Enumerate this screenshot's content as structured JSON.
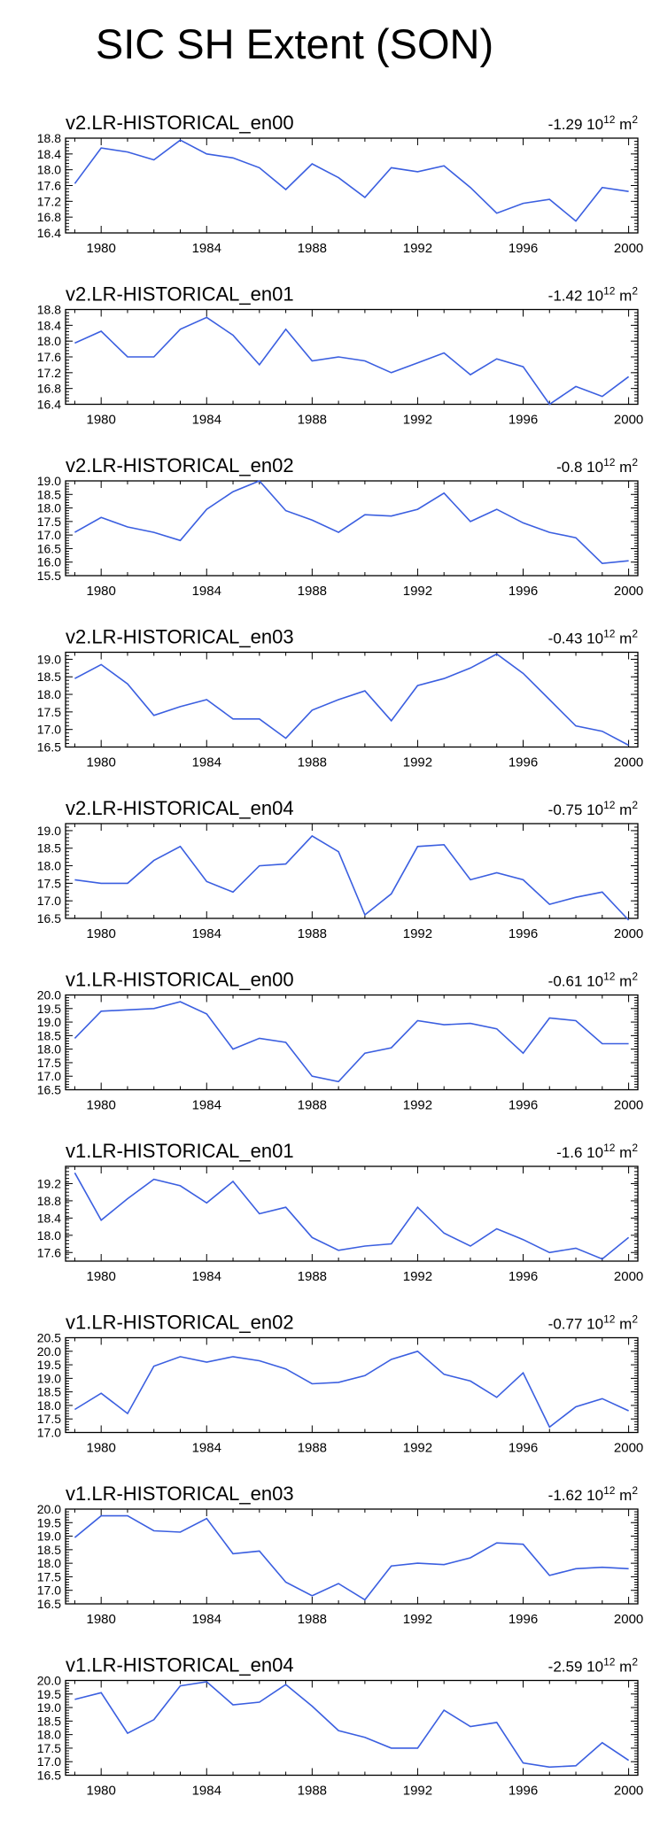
{
  "title": "SIC SH Extent (SON)",
  "chart_data": [
    {
      "type": "line",
      "title": "v2.LR-HISTORICAL_en00",
      "trend": "-1.29",
      "unit_base": "10",
      "unit_exp": "12",
      "unit_suffix": "m",
      "unit_suffix_exp": "2",
      "x": [
        1979,
        1980,
        1981,
        1982,
        1983,
        1984,
        1985,
        1986,
        1987,
        1988,
        1989,
        1990,
        1991,
        1992,
        1993,
        1994,
        1995,
        1996,
        1997,
        1998,
        1999,
        2000
      ],
      "y": [
        17.65,
        18.55,
        18.45,
        18.25,
        18.75,
        18.4,
        18.3,
        18.05,
        17.5,
        18.15,
        17.8,
        17.3,
        18.05,
        17.95,
        18.1,
        17.55,
        16.9,
        17.15,
        17.25,
        16.7,
        17.55,
        17.45
      ],
      "ylim": [
        16.4,
        18.8
      ],
      "yticks": [
        "16.4",
        "16.8",
        "17.2",
        "17.6",
        "18.0",
        "18.4",
        "18.8"
      ],
      "xticks": [
        "1980",
        "1984",
        "1988",
        "1992",
        "1996",
        "2000"
      ]
    },
    {
      "type": "line",
      "title": "v2.LR-HISTORICAL_en01",
      "trend": "-1.42",
      "unit_base": "10",
      "unit_exp": "12",
      "unit_suffix": "m",
      "unit_suffix_exp": "2",
      "x": [
        1979,
        1980,
        1981,
        1982,
        1983,
        1984,
        1985,
        1986,
        1987,
        1988,
        1989,
        1990,
        1991,
        1992,
        1993,
        1994,
        1995,
        1996,
        1997,
        1998,
        1999,
        2000
      ],
      "y": [
        17.95,
        18.25,
        17.6,
        17.6,
        18.3,
        18.6,
        18.15,
        17.4,
        18.3,
        17.5,
        17.6,
        17.5,
        17.2,
        17.45,
        17.7,
        17.15,
        17.55,
        17.35,
        16.4,
        16.85,
        16.6,
        17.1
      ],
      "ylim": [
        16.4,
        18.8
      ],
      "yticks": [
        "16.4",
        "16.8",
        "17.2",
        "17.6",
        "18.0",
        "18.4",
        "18.8"
      ],
      "xticks": [
        "1980",
        "1984",
        "1988",
        "1992",
        "1996",
        "2000"
      ]
    },
    {
      "type": "line",
      "title": "v2.LR-HISTORICAL_en02",
      "trend": "-0.8",
      "unit_base": "10",
      "unit_exp": "12",
      "unit_suffix": "m",
      "unit_suffix_exp": "2",
      "x": [
        1979,
        1980,
        1981,
        1982,
        1983,
        1984,
        1985,
        1986,
        1987,
        1988,
        1989,
        1990,
        1991,
        1992,
        1993,
        1994,
        1995,
        1996,
        1997,
        1998,
        1999,
        2000
      ],
      "y": [
        17.1,
        17.65,
        17.3,
        17.1,
        16.8,
        17.95,
        18.6,
        19.0,
        17.9,
        17.55,
        17.1,
        17.75,
        17.7,
        17.95,
        18.55,
        17.5,
        17.95,
        17.45,
        17.1,
        16.9,
        15.95,
        16.05
      ],
      "ylim": [
        15.5,
        19.0
      ],
      "yticks": [
        "15.5",
        "16.0",
        "16.5",
        "17.0",
        "17.5",
        "18.0",
        "18.5",
        "19.0"
      ],
      "xticks": [
        "1980",
        "1984",
        "1988",
        "1992",
        "1996",
        "2000"
      ]
    },
    {
      "type": "line",
      "title": "v2.LR-HISTORICAL_en03",
      "trend": "-0.43",
      "unit_base": "10",
      "unit_exp": "12",
      "unit_suffix": "m",
      "unit_suffix_exp": "2",
      "x": [
        1979,
        1980,
        1981,
        1982,
        1983,
        1984,
        1985,
        1986,
        1987,
        1988,
        1989,
        1990,
        1991,
        1992,
        1993,
        1994,
        1995,
        1996,
        1997,
        1998,
        1999,
        2000
      ],
      "y": [
        18.45,
        18.85,
        18.3,
        17.4,
        17.65,
        17.85,
        17.3,
        17.3,
        16.75,
        17.55,
        17.85,
        18.1,
        17.25,
        18.25,
        18.45,
        18.75,
        19.15,
        18.6,
        17.85,
        17.1,
        16.95,
        16.55
      ],
      "ylim": [
        16.5,
        19.2
      ],
      "yticks": [
        "16.5",
        "17.0",
        "17.5",
        "18.0",
        "18.5",
        "19.0"
      ],
      "xticks": [
        "1980",
        "1984",
        "1988",
        "1992",
        "1996",
        "2000"
      ]
    },
    {
      "type": "line",
      "title": "v2.LR-HISTORICAL_en04",
      "trend": "-0.75",
      "unit_base": "10",
      "unit_exp": "12",
      "unit_suffix": "m",
      "unit_suffix_exp": "2",
      "x": [
        1979,
        1980,
        1981,
        1982,
        1983,
        1984,
        1985,
        1986,
        1987,
        1988,
        1989,
        1990,
        1991,
        1992,
        1993,
        1994,
        1995,
        1996,
        1997,
        1998,
        1999,
        2000
      ],
      "y": [
        17.6,
        17.5,
        17.5,
        18.15,
        18.55,
        17.55,
        17.25,
        18.0,
        18.05,
        18.85,
        18.4,
        16.6,
        17.2,
        18.55,
        18.6,
        17.6,
        17.8,
        17.6,
        16.9,
        17.1,
        17.25,
        16.45
      ],
      "ylim": [
        16.5,
        19.2
      ],
      "yticks": [
        "16.5",
        "17.0",
        "17.5",
        "18.0",
        "18.5",
        "19.0"
      ],
      "xticks": [
        "1980",
        "1984",
        "1988",
        "1992",
        "1996",
        "2000"
      ]
    },
    {
      "type": "line",
      "title": "v1.LR-HISTORICAL_en00",
      "trend": "-0.61",
      "unit_base": "10",
      "unit_exp": "12",
      "unit_suffix": "m",
      "unit_suffix_exp": "2",
      "x": [
        1979,
        1980,
        1981,
        1982,
        1983,
        1984,
        1985,
        1986,
        1987,
        1988,
        1989,
        1990,
        1991,
        1992,
        1993,
        1994,
        1995,
        1996,
        1997,
        1998,
        1999,
        2000
      ],
      "y": [
        18.4,
        19.4,
        19.45,
        19.5,
        19.75,
        19.3,
        18.0,
        18.4,
        18.25,
        17.0,
        16.8,
        17.85,
        18.05,
        19.05,
        18.9,
        18.95,
        18.75,
        17.85,
        19.15,
        19.05,
        18.2,
        18.2
      ],
      "ylim": [
        16.5,
        20.0
      ],
      "yticks": [
        "16.5",
        "17.0",
        "17.5",
        "18.0",
        "18.5",
        "19.0",
        "19.5",
        "20.0"
      ],
      "xticks": [
        "1980",
        "1984",
        "1988",
        "1992",
        "1996",
        "2000"
      ]
    },
    {
      "type": "line",
      "title": "v1.LR-HISTORICAL_en01",
      "trend": "-1.6",
      "unit_base": "10",
      "unit_exp": "12",
      "unit_suffix": "m",
      "unit_suffix_exp": "2",
      "x": [
        1979,
        1980,
        1981,
        1982,
        1983,
        1984,
        1985,
        1986,
        1987,
        1988,
        1989,
        1990,
        1991,
        1992,
        1993,
        1994,
        1995,
        1996,
        1997,
        1998,
        1999,
        2000
      ],
      "y": [
        19.45,
        18.35,
        18.85,
        19.3,
        19.15,
        18.75,
        19.25,
        18.5,
        18.65,
        17.95,
        17.65,
        17.75,
        17.8,
        18.65,
        18.05,
        17.75,
        18.15,
        17.9,
        17.6,
        17.7,
        17.45,
        17.95
      ],
      "ylim": [
        17.4,
        19.6
      ],
      "yticks": [
        "17.6",
        "18.0",
        "18.4",
        "18.8",
        "19.2"
      ],
      "xticks": [
        "1980",
        "1984",
        "1988",
        "1992",
        "1996",
        "2000"
      ]
    },
    {
      "type": "line",
      "title": "v1.LR-HISTORICAL_en02",
      "trend": "-0.77",
      "unit_base": "10",
      "unit_exp": "12",
      "unit_suffix": "m",
      "unit_suffix_exp": "2",
      "x": [
        1979,
        1980,
        1981,
        1982,
        1983,
        1984,
        1985,
        1986,
        1987,
        1988,
        1989,
        1990,
        1991,
        1992,
        1993,
        1994,
        1995,
        1996,
        1997,
        1998,
        1999,
        2000
      ],
      "y": [
        17.85,
        18.45,
        17.7,
        19.45,
        19.8,
        19.6,
        19.8,
        19.65,
        19.35,
        18.8,
        18.85,
        19.1,
        19.7,
        20.0,
        19.15,
        18.9,
        18.3,
        19.2,
        17.2,
        17.95,
        18.25,
        17.8
      ],
      "ylim": [
        17.0,
        20.5
      ],
      "yticks": [
        "17.0",
        "17.5",
        "18.0",
        "18.5",
        "19.0",
        "19.5",
        "20.0",
        "20.5"
      ],
      "xticks": [
        "1980",
        "1984",
        "1988",
        "1992",
        "1996",
        "2000"
      ]
    },
    {
      "type": "line",
      "title": "v1.LR-HISTORICAL_en03",
      "trend": "-1.62",
      "unit_base": "10",
      "unit_exp": "12",
      "unit_suffix": "m",
      "unit_suffix_exp": "2",
      "x": [
        1979,
        1980,
        1981,
        1982,
        1983,
        1984,
        1985,
        1986,
        1987,
        1988,
        1989,
        1990,
        1991,
        1992,
        1993,
        1994,
        1995,
        1996,
        1997,
        1998,
        1999,
        2000
      ],
      "y": [
        18.95,
        19.75,
        19.75,
        19.2,
        19.15,
        19.65,
        18.35,
        18.45,
        17.3,
        16.8,
        17.25,
        16.65,
        17.9,
        18.0,
        17.95,
        18.2,
        18.75,
        18.7,
        17.55,
        17.8,
        17.85,
        17.8
      ],
      "ylim": [
        16.5,
        20.0
      ],
      "yticks": [
        "16.5",
        "17.0",
        "17.5",
        "18.0",
        "18.5",
        "19.0",
        "19.5",
        "20.0"
      ],
      "xticks": [
        "1980",
        "1984",
        "1988",
        "1992",
        "1996",
        "2000"
      ]
    },
    {
      "type": "line",
      "title": "v1.LR-HISTORICAL_en04",
      "trend": "-2.59",
      "unit_base": "10",
      "unit_exp": "12",
      "unit_suffix": "m",
      "unit_suffix_exp": "2",
      "x": [
        1979,
        1980,
        1981,
        1982,
        1983,
        1984,
        1985,
        1986,
        1987,
        1988,
        1989,
        1990,
        1991,
        1992,
        1993,
        1994,
        1995,
        1996,
        1997,
        1998,
        1999,
        2000
      ],
      "y": [
        19.3,
        19.55,
        18.05,
        18.55,
        19.8,
        19.95,
        19.1,
        19.2,
        19.85,
        19.05,
        18.15,
        17.9,
        17.5,
        17.5,
        18.9,
        18.3,
        18.45,
        16.95,
        16.8,
        16.85,
        17.7,
        17.05
      ],
      "ylim": [
        16.5,
        20.0
      ],
      "yticks": [
        "16.5",
        "17.0",
        "17.5",
        "18.0",
        "18.5",
        "19.0",
        "19.5",
        "20.0"
      ],
      "xticks": [
        "1980",
        "1984",
        "1988",
        "1992",
        "1996",
        "2000"
      ]
    }
  ]
}
